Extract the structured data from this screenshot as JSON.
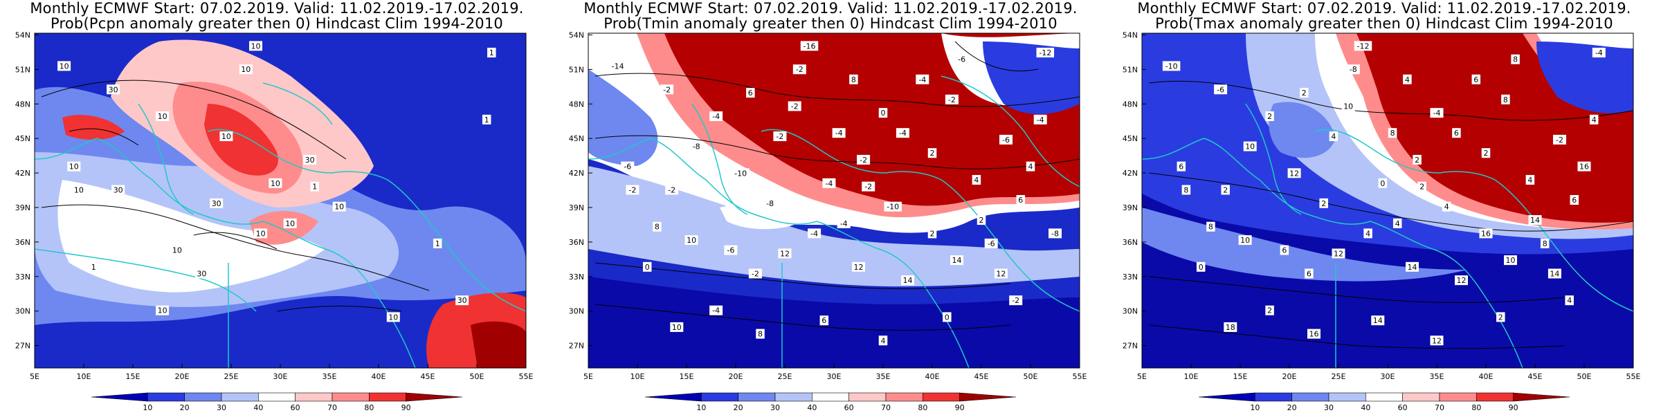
{
  "panels": [
    {
      "title_line1": "Monthly ECMWF Start: 07.02.2019. Valid: 11.02.2019.-17.02.2019.",
      "title_line2": "Prob(Pcpn anomaly greater then 0) Hindcast Clim 1994-2010",
      "contour_labels": [
        "1",
        "10",
        "10",
        "30",
        "10",
        "10",
        "10",
        "30",
        "10",
        "30",
        "10",
        "10",
        "30",
        "10",
        "30",
        "10",
        "10",
        "1",
        "10",
        "10",
        "1",
        "1",
        "1",
        "10",
        "30"
      ]
    },
    {
      "title_line1": "Monthly ECMWF Start: 07.02.2019. Valid: 11.02.2019.-17.02.2019.",
      "title_line2": "Prob(Tmin anomaly greater then 0) Hindcast Clim 1994-2010",
      "contour_labels": [
        "-12",
        "-14",
        "-16",
        "-2",
        "-2",
        "-4",
        "-2",
        "-2",
        "-4",
        "-8",
        "-10",
        "-6",
        "-2",
        "-4",
        "-2",
        "-2",
        "-4",
        "-6",
        "-6",
        "-4",
        "0",
        "-2",
        "-4",
        "0",
        "-2",
        "-4",
        "-6",
        "-8",
        "-10",
        "-2",
        "-4",
        "0",
        "2",
        "4",
        "6",
        "8",
        "10",
        "12",
        "12",
        "14",
        "14",
        "12",
        "10",
        "8",
        "6",
        "4",
        "2",
        "2",
        "4",
        "6",
        "8",
        "-4",
        "-2",
        "-6",
        "-8"
      ]
    },
    {
      "title_line1": "Monthly ECMWF Start: 07.02.2019. Valid: 11.02.2019.-17.02.2019.",
      "title_line2": "Prob(Tmax anomaly greater then 0) Hindcast Clim 1994-2010",
      "contour_labels": [
        "-4",
        "-10",
        "-12",
        "-6",
        "-8",
        "2",
        "4",
        "2",
        "0",
        "2",
        "4",
        "6",
        "2",
        "4",
        "6",
        "8",
        "4",
        "8",
        "6",
        "2",
        "0",
        "2",
        "4",
        "2",
        "4",
        "6",
        "8",
        "10",
        "12",
        "10",
        "8",
        "-4",
        "2",
        "4",
        "6",
        "8",
        "10",
        "12",
        "14",
        "12",
        "10",
        "14",
        "18",
        "16",
        "14",
        "12",
        "16",
        "14",
        "16",
        "2",
        "4",
        "6",
        "8",
        "-2"
      ]
    }
  ],
  "lat_labels": [
    "54N",
    "51N",
    "48N",
    "45N",
    "42N",
    "39N",
    "36N",
    "33N",
    "30N",
    "27N"
  ],
  "lon_labels": [
    "5E",
    "10E",
    "15E",
    "20E",
    "25E",
    "30E",
    "35E",
    "40E",
    "45E",
    "50E",
    "55E"
  ],
  "colorbar_labels": [
    "10",
    "20",
    "30",
    "40",
    "60",
    "70",
    "80",
    "90"
  ],
  "colorbar_colors": [
    "#0000b4",
    "#2a3ce0",
    "#6e88f0",
    "#b4c4f8",
    "#ffffff",
    "#ffc8c8",
    "#ff8c8c",
    "#f03232",
    "#a00000"
  ],
  "map_colors": {
    "coast": "#20c8c8",
    "contour": "#000000",
    "high": "#b40000",
    "low": "#0a0aa8"
  }
}
